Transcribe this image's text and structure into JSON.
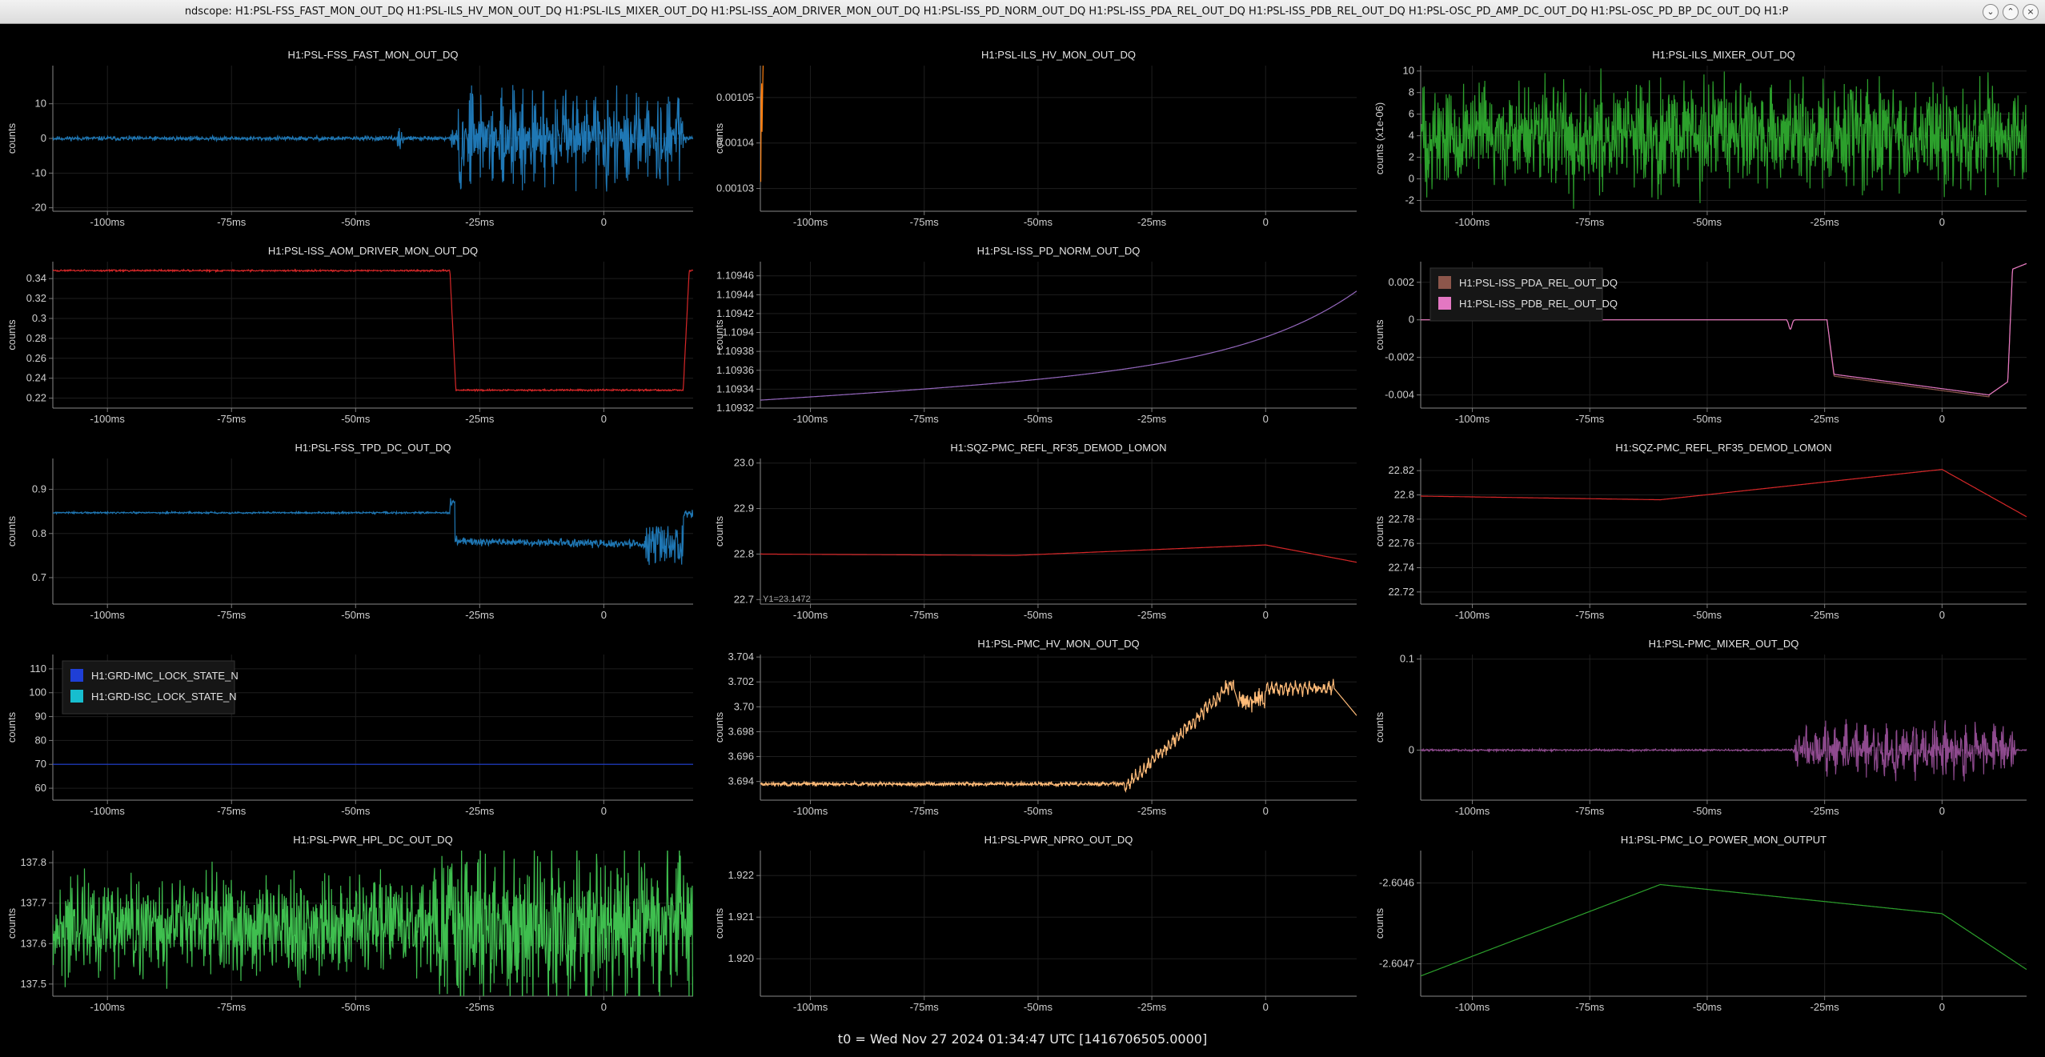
{
  "window": {
    "title": "ndscope: H1:PSL-FSS_FAST_MON_OUT_DQ H1:PSL-ILS_HV_MON_OUT_DQ H1:PSL-ILS_MIXER_OUT_DQ H1:PSL-ISS_AOM_DRIVER_MON_OUT_DQ H1:PSL-ISS_PD_NORM_OUT_DQ H1:PSL-ISS_PDA_REL_OUT_DQ H1:PSL-ISS_PDB_REL_OUT_DQ H1:PSL-OSC_PD_AMP_DC_OUT_DQ H1:PSL-OSC_PD_BP_DC_OUT_DQ H1:P",
    "minimize_icon": "chevron-down-icon",
    "maximize_icon": "chevron-up-icon",
    "close_icon": "close-icon"
  },
  "footer": {
    "t0_label": "t0 = Wed Nov 27 2024 01:34:47 UTC [1416706505.0000]"
  },
  "chart_data": [
    {
      "type": "line",
      "title": "H1:PSL-FSS_FAST_MON_OUT_DQ",
      "ylabel": "counts",
      "xlim": [
        -111,
        18
      ],
      "ylim": [
        -21,
        21
      ],
      "yticks": [
        {
          "v": 10,
          "t": "10"
        },
        {
          "v": 0,
          "t": "0"
        },
        {
          "v": -10,
          "t": "-10"
        },
        {
          "v": -20,
          "t": "-20"
        }
      ],
      "series": [
        {
          "color": "#1f77b4",
          "shape": "burst",
          "seed": 11,
          "p": {
            "base": 0,
            "amp": 0.3,
            "start": -31,
            "end": 17,
            "bamp": 16,
            "blip": -41,
            "blipAmp": 3
          }
        }
      ]
    },
    {
      "type": "line",
      "title": "H1:PSL-ILS_HV_MON_OUT_DQ",
      "ylabel": "counts",
      "xlim": [
        -111,
        20
      ],
      "ylim": [
        0.001025,
        0.001057
      ],
      "yticks": [
        {
          "v": 0.00105,
          "t": "0.00105"
        },
        {
          "v": 0.00104,
          "t": "0.00104"
        },
        {
          "v": 0.00103,
          "t": "0.00103"
        }
      ],
      "series": [
        {
          "color": "#ff7f0e",
          "shape": "noise",
          "seed": 22,
          "p": {
            "base": 0.001037,
            "slope": 2.75e-08,
            "amp": 4.5e-06
          }
        }
      ]
    },
    {
      "type": "line",
      "title": "H1:PSL-ILS_MIXER_OUT_DQ",
      "ylabel": "counts (x1e-06)",
      "xlim": [
        -111,
        18
      ],
      "ylim": [
        -3,
        10.5
      ],
      "yticks": [
        {
          "v": 10,
          "t": "10"
        },
        {
          "v": 8,
          "t": "8"
        },
        {
          "v": 6,
          "t": "6"
        },
        {
          "v": 4,
          "t": "4"
        },
        {
          "v": 2,
          "t": "2"
        },
        {
          "v": 0,
          "t": "0"
        },
        {
          "v": -2,
          "t": "-2"
        }
      ],
      "series": [
        {
          "color": "#2ca02c",
          "shape": "noise",
          "seed": 33,
          "p": {
            "base": 4,
            "slope": 0,
            "amp": 2.3
          }
        }
      ]
    },
    {
      "type": "line",
      "title": "H1:PSL-ISS_AOM_DRIVER_MON_OUT_DQ",
      "ylabel": "counts",
      "xlim": [
        -111,
        18
      ],
      "ylim": [
        0.21,
        0.357
      ],
      "yticks": [
        {
          "v": 0.34,
          "t": "0.34"
        },
        {
          "v": 0.32,
          "t": "0.32"
        },
        {
          "v": 0.3,
          "t": "0.3"
        },
        {
          "v": 0.28,
          "t": "0.28"
        },
        {
          "v": 0.26,
          "t": "0.26"
        },
        {
          "v": 0.24,
          "t": "0.24"
        },
        {
          "v": 0.22,
          "t": "0.22"
        }
      ],
      "series": [
        {
          "color": "#d62728",
          "shape": "step",
          "seed": 44,
          "p": {
            "hi": 0.348,
            "lo": 0.228,
            "t1": -31,
            "t2": 16,
            "amp": 0.0004
          }
        }
      ]
    },
    {
      "type": "line",
      "title": "H1:PSL-ISS_PD_NORM_OUT_DQ",
      "ylabel": "counts",
      "xlim": [
        -111,
        20
      ],
      "ylim": [
        1.10932,
        1.109475
      ],
      "yticks": [
        {
          "v": 1.10946,
          "t": "1.10946"
        },
        {
          "v": 1.10944,
          "t": "1.10944"
        },
        {
          "v": 1.10942,
          "t": "1.10942"
        },
        {
          "v": 1.1094,
          "t": "1.1094"
        },
        {
          "v": 1.10938,
          "t": "1.10938"
        },
        {
          "v": 1.10936,
          "t": "1.10936"
        },
        {
          "v": 1.10934,
          "t": "1.10934"
        },
        {
          "v": 1.10932,
          "t": "1.10932"
        }
      ],
      "series": [
        {
          "color": "#9467bd",
          "shape": "exp",
          "seed": 55,
          "p": {
            "a": 1.109328,
            "b": 3.8e-05,
            "c": 0.0001,
            "k": 0.04
          }
        }
      ]
    },
    {
      "type": "line",
      "title": "",
      "ylabel": "counts",
      "xlim": [
        -111,
        18
      ],
      "ylim": [
        -0.0047,
        0.0031
      ],
      "yticks": [
        {
          "v": 0.002,
          "t": "0.002"
        },
        {
          "v": 0,
          "t": "0"
        },
        {
          "v": -0.002,
          "t": "-0.002"
        },
        {
          "v": -0.004,
          "t": "-0.004"
        }
      ],
      "legend": [
        {
          "name": "H1:PSL-ISS_PDA_REL_OUT_DQ",
          "color": "#8c564b"
        },
        {
          "name": "H1:PSL-ISS_PDB_REL_OUT_DQ",
          "color": "#e377c2"
        }
      ],
      "series": [
        {
          "color": "#8c564b",
          "shape": "rel",
          "seed": 66,
          "p": {
            "off": -0.0001
          }
        },
        {
          "color": "#e377c2",
          "shape": "rel",
          "seed": 67,
          "p": {
            "off": 0
          }
        }
      ]
    },
    {
      "type": "line",
      "title": "H1:PSL-FSS_TPD_DC_OUT_DQ",
      "ylabel": "counts",
      "xlim": [
        -111,
        18
      ],
      "ylim": [
        0.64,
        0.97
      ],
      "yticks": [
        {
          "v": 0.9,
          "t": "0.9"
        },
        {
          "v": 0.8,
          "t": "0.8"
        },
        {
          "v": 0.7,
          "t": "0.7"
        }
      ],
      "series": [
        {
          "color": "#1f77b4",
          "shape": "tpd",
          "seed": 77,
          "p": {}
        }
      ]
    },
    {
      "type": "line",
      "title": "H1:SQZ-PMC_REFL_RF35_DEMOD_LOMON",
      "ylabel": "counts",
      "xlim": [
        -111,
        20
      ],
      "ylim": [
        22.69,
        23.01
      ],
      "yticks": [
        {
          "v": 23,
          "t": "23.0"
        },
        {
          "v": 22.9,
          "t": "22.9"
        },
        {
          "v": 22.8,
          "t": "22.8"
        },
        {
          "v": 22.7,
          "t": "22.7"
        }
      ],
      "series": [
        {
          "color": "#d62728",
          "shape": "pw",
          "seed": 88,
          "p": {
            "pts": [
              [
                -111,
                22.8
              ],
              [
                -55,
                22.797
              ],
              [
                0,
                22.82
              ],
              [
                20,
                22.782
              ]
            ],
            "amp": 0
          }
        }
      ]
    },
    {
      "type": "line",
      "title": "H1:SQZ-PMC_REFL_RF35_DEMOD_LOMON",
      "ylabel": "counts",
      "xlim": [
        -111,
        18
      ],
      "ylim": [
        22.71,
        22.83
      ],
      "yticks": [
        {
          "v": 22.82,
          "t": "22.82"
        },
        {
          "v": 22.8,
          "t": "22.8"
        },
        {
          "v": 22.78,
          "t": "22.78"
        },
        {
          "v": 22.76,
          "t": "22.76"
        },
        {
          "v": 22.74,
          "t": "22.74"
        },
        {
          "v": 22.72,
          "t": "22.72"
        }
      ],
      "series": [
        {
          "color": "#d62728",
          "shape": "pw",
          "seed": 89,
          "p": {
            "pts": [
              [
                -111,
                22.799
              ],
              [
                -60,
                22.796
              ],
              [
                0,
                22.821
              ],
              [
                18,
                22.782
              ]
            ],
            "amp": 0
          }
        }
      ]
    },
    {
      "type": "line",
      "title": "",
      "ylabel": "counts",
      "xlim": [
        -111,
        18
      ],
      "ylim": [
        55,
        116
      ],
      "yticks": [
        {
          "v": 110,
          "t": "110"
        },
        {
          "v": 100,
          "t": "100"
        },
        {
          "v": 90,
          "t": "90"
        },
        {
          "v": 80,
          "t": "80"
        },
        {
          "v": 70,
          "t": "70"
        },
        {
          "v": 60,
          "t": "60"
        }
      ],
      "legend": [
        {
          "name": "H1:GRD-IMC_LOCK_STATE_N",
          "color": "#1f3fd6"
        },
        {
          "name": "H1:GRD-ISC_LOCK_STATE_N",
          "color": "#17becf"
        }
      ],
      "series": [
        {
          "color": "#1f3fd6",
          "shape": "flat",
          "seed": 99,
          "p": {
            "v": 70
          }
        }
      ]
    },
    {
      "type": "line",
      "title": "H1:PSL-PMC_HV_MON_OUT_DQ",
      "ylabel": "counts",
      "xlim": [
        -111,
        20
      ],
      "ylim": [
        3.6925,
        3.7042
      ],
      "yticks": [
        {
          "v": 3.704,
          "t": "3.704"
        },
        {
          "v": 3.702,
          "t": "3.702"
        },
        {
          "v": 3.7,
          "t": "3.70"
        },
        {
          "v": 3.698,
          "t": "3.698"
        },
        {
          "v": 3.696,
          "t": "3.696"
        },
        {
          "v": 3.694,
          "t": "3.694"
        },
        {
          "v": 3.692,
          "t": "3.692"
        }
      ],
      "series": [
        {
          "color": "#ffbb78",
          "shape": "pmchv",
          "seed": 111,
          "p": {}
        }
      ]
    },
    {
      "type": "line",
      "title": "H1:PSL-PMC_MIXER_OUT_DQ",
      "ylabel": "counts",
      "xlim": [
        -111,
        18
      ],
      "ylim": [
        -0.055,
        0.105
      ],
      "yticks": [
        {
          "v": 0.1,
          "t": "0.1"
        },
        {
          "v": 0,
          "t": "0"
        }
      ],
      "series": [
        {
          "color": "#8e4a8e",
          "shape": "burst",
          "seed": 122,
          "p": {
            "base": 0,
            "amp": 0.0005,
            "start": -32,
            "end": 16,
            "bamp": 0.035,
            "blip": 999,
            "blipAmp": 0
          }
        }
      ]
    },
    {
      "type": "line",
      "title": "H1:PSL-PWR_HPL_DC_OUT_DQ",
      "ylabel": "counts",
      "xlim": [
        -111,
        18
      ],
      "ylim": [
        137.47,
        137.83
      ],
      "yticks": [
        {
          "v": 137.8,
          "t": "137.8"
        },
        {
          "v": 137.7,
          "t": "137.7"
        },
        {
          "v": 137.6,
          "t": "137.6"
        },
        {
          "v": 137.5,
          "t": "137.5"
        }
      ],
      "series": [
        {
          "color": "#3fbf4f",
          "shape": "noise",
          "seed": 133,
          "p": {
            "base": 137.645,
            "slope": 0,
            "amp": 0.06,
            "growAfter": -35,
            "grow": 1.4
          }
        }
      ]
    },
    {
      "type": "line",
      "title": "H1:PSL-PWR_NPRO_OUT_DQ",
      "ylabel": "counts",
      "xlim": [
        -111,
        20
      ],
      "ylim": [
        1.9191,
        1.9226
      ],
      "yticks": [
        {
          "v": 1.922,
          "t": "1.922"
        },
        {
          "v": 1.921,
          "t": "1.921"
        },
        {
          "v": 1.92,
          "t": "1.920"
        }
      ],
      "series": []
    },
    {
      "type": "line",
      "title": "H1:PSL-PMC_LO_POWER_MON_OUTPUT",
      "ylabel": "counts",
      "xlim": [
        -111,
        18
      ],
      "ylim": [
        -2.60474,
        -2.60456
      ],
      "yticks": [
        {
          "v": -2.6046,
          "t": "-2.6046"
        },
        {
          "v": -2.6047,
          "t": "-2.6047"
        }
      ],
      "series": [
        {
          "color": "#2ca02c",
          "shape": "pw",
          "seed": 144,
          "p": {
            "pts": [
              [
                -111,
                -2.604715
              ],
              [
                -60,
                -2.604602
              ],
              [
                0,
                -2.604638
              ],
              [
                18,
                -2.604707
              ]
            ],
            "amp": 0
          }
        }
      ]
    }
  ],
  "xticks": [
    {
      "v": -100,
      "t": "-100ms"
    },
    {
      "v": -75,
      "t": "-75ms"
    },
    {
      "v": -50,
      "t": "-50ms"
    },
    {
      "v": -25,
      "t": "-25ms"
    },
    {
      "v": 0,
      "t": "0"
    }
  ],
  "extra": {
    "cursor_label": "Y1=23.1472"
  }
}
